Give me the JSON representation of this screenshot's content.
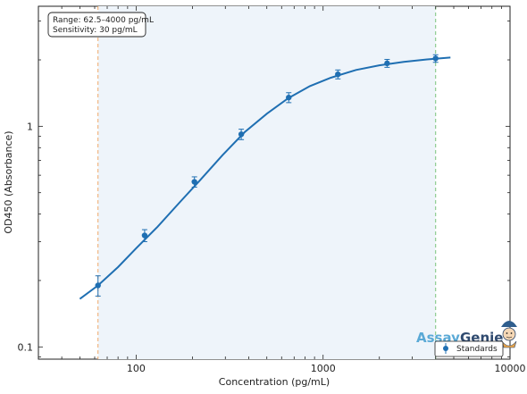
{
  "chart_data": {
    "type": "scatter",
    "xlabel": "Concentration (pg/mL)",
    "ylabel": "OD450 (Absorbance)",
    "x_scale": "log",
    "y_scale": "log",
    "xlim": [
      30,
      10000
    ],
    "ylim": [
      0.088,
      3.5
    ],
    "x_ticks": [
      100,
      1000,
      10000
    ],
    "x_tick_labels": [
      "100",
      "1000",
      "10000"
    ],
    "y_ticks": [
      0.1,
      1
    ],
    "y_tick_labels": [
      "0.1",
      "1"
    ],
    "annotation": {
      "line1": "Range: 62.5–4000 pg/mL",
      "line2": "Sensitivity: 30 pg/mL"
    },
    "shaded_range": [
      62.5,
      4000
    ],
    "vlines": [
      {
        "x": 62.5,
        "color": "#f0a868"
      },
      {
        "x": 4000,
        "color": "#7cc47c"
      }
    ],
    "series": [
      {
        "name": "Standards",
        "color": "#1f6fb2",
        "x": [
          62.5,
          111,
          205,
          365,
          655,
          1200,
          2200,
          4000
        ],
        "y": [
          0.19,
          0.32,
          0.56,
          0.92,
          1.35,
          1.72,
          1.93,
          2.03
        ],
        "err": [
          0.02,
          0.02,
          0.03,
          0.05,
          0.07,
          0.08,
          0.08,
          0.08
        ]
      }
    ],
    "fit_curve": {
      "x": [
        50,
        62.5,
        80,
        100,
        130,
        170,
        220,
        290,
        380,
        500,
        650,
        850,
        1100,
        1500,
        2000,
        2700,
        3600,
        4800
      ],
      "y": [
        0.165,
        0.19,
        0.23,
        0.28,
        0.35,
        0.45,
        0.57,
        0.74,
        0.94,
        1.14,
        1.34,
        1.52,
        1.66,
        1.8,
        1.89,
        1.96,
        2.01,
        2.05
      ]
    },
    "legend_position": "bottom-right",
    "grid": false
  },
  "logo": {
    "part1": "Assay",
    "part2": "Genie"
  },
  "colors": {
    "curve": "#1f6fb2",
    "shade": "#eef4fa",
    "low_line": "#f0a868",
    "high_line": "#7cc47c"
  }
}
